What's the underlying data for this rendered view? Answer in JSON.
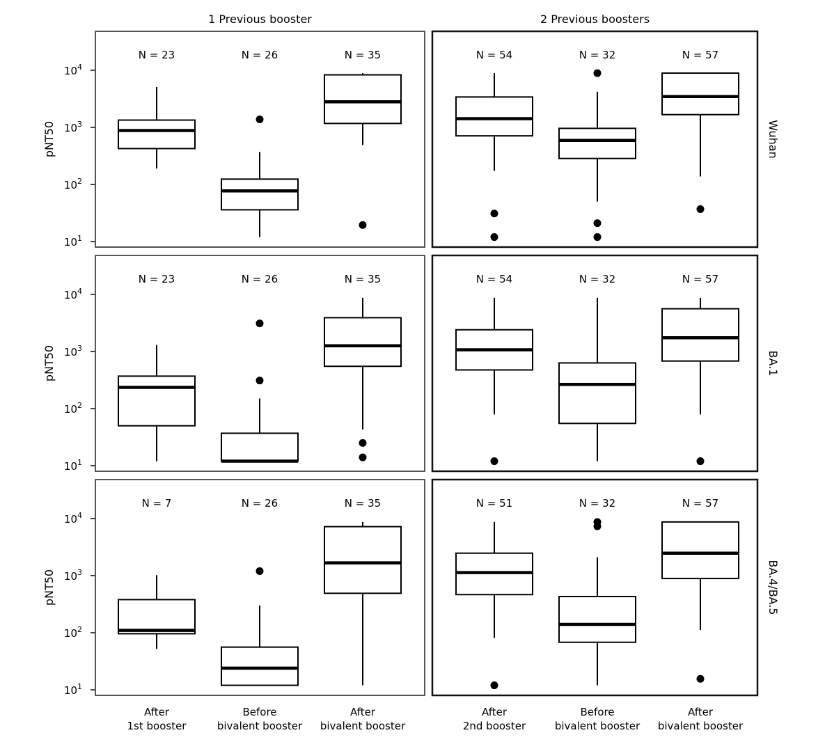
{
  "chart_data": {
    "type": "box",
    "y_scale": "log",
    "ylabel": "pNT50",
    "ylim": [
      8,
      48000
    ],
    "yticks": [
      10,
      100,
      1000,
      10000
    ],
    "ytick_labels": [
      {
        "base": "10",
        "exp": "1"
      },
      {
        "base": "10",
        "exp": "2"
      },
      {
        "base": "10",
        "exp": "3"
      },
      {
        "base": "10",
        "exp": "4"
      }
    ],
    "grid": false,
    "columns": [
      "1 Previous booster",
      "2 Previous boosters"
    ],
    "rows": [
      "Wuhan",
      "BA.1",
      "BA.4/BA.5"
    ],
    "categories": [
      [
        [
          "After",
          "1st booster"
        ],
        [
          "Before",
          "bivalent booster"
        ],
        [
          "After",
          "bivalent booster"
        ]
      ],
      [
        [
          "After",
          "2nd booster"
        ],
        [
          "Before",
          "bivalent booster"
        ],
        [
          "After",
          "bivalent booster"
        ]
      ]
    ],
    "panels": [
      {
        "column": 0,
        "row": 0,
        "boxes": [
          {
            "n_label": "N = 23",
            "whisker_low": 190,
            "q1": 425,
            "median": 880,
            "q3": 1340,
            "whisker_high": 5100,
            "outliers": []
          },
          {
            "n_label": "N = 26",
            "whisker_low": 12,
            "q1": 36,
            "median": 77,
            "q3": 124,
            "whisker_high": 370,
            "outliers": [
              1380
            ]
          },
          {
            "n_label": "N = 35",
            "whisker_low": 490,
            "q1": 1170,
            "median": 2800,
            "q3": 8300,
            "whisker_high": 8900,
            "outliers": [
              19.5
            ]
          }
        ]
      },
      {
        "column": 1,
        "row": 0,
        "boxes": [
          {
            "n_label": "N = 54",
            "whisker_low": 173,
            "q1": 710,
            "median": 1420,
            "q3": 3400,
            "whisker_high": 8900,
            "outliers": [
              31,
              12
            ]
          },
          {
            "n_label": "N = 32",
            "whisker_low": 50,
            "q1": 285,
            "median": 590,
            "q3": 960,
            "whisker_high": 4200,
            "outliers": [
              8900,
              21,
              12
            ]
          },
          {
            "n_label": "N = 57",
            "whisker_low": 138,
            "q1": 1670,
            "median": 3460,
            "q3": 8900,
            "whisker_high": 8900,
            "outliers": [
              37
            ]
          }
        ]
      },
      {
        "column": 0,
        "row": 1,
        "boxes": [
          {
            "n_label": "N = 23",
            "whisker_low": 12,
            "q1": 50,
            "median": 235,
            "q3": 370,
            "whisker_high": 1300,
            "outliers": []
          },
          {
            "n_label": "N = 26",
            "whisker_low": 12,
            "q1": 12,
            "median": 12,
            "q3": 37,
            "whisker_high": 150,
            "outliers": [
              3100,
              310
            ]
          },
          {
            "n_label": "N = 35",
            "whisker_low": 43,
            "q1": 550,
            "median": 1260,
            "q3": 3900,
            "whisker_high": 8700,
            "outliers": [
              25,
              14
            ]
          }
        ]
      },
      {
        "column": 1,
        "row": 1,
        "boxes": [
          {
            "n_label": "N = 54",
            "whisker_low": 79,
            "q1": 475,
            "median": 1070,
            "q3": 2400,
            "whisker_high": 8700,
            "outliers": [
              12
            ]
          },
          {
            "n_label": "N = 32",
            "whisker_low": 12,
            "q1": 55,
            "median": 265,
            "q3": 630,
            "whisker_high": 8700,
            "outliers": []
          },
          {
            "n_label": "N = 57",
            "whisker_low": 79,
            "q1": 680,
            "median": 1740,
            "q3": 5600,
            "whisker_high": 8700,
            "outliers": [
              12
            ]
          }
        ]
      },
      {
        "column": 0,
        "row": 2,
        "boxes": [
          {
            "n_label": "N = 7",
            "whisker_low": 52,
            "q1": 96,
            "median": 110,
            "q3": 380,
            "whisker_high": 1020,
            "outliers": []
          },
          {
            "n_label": "N = 26",
            "whisker_low": 12,
            "q1": 12,
            "median": 24,
            "q3": 56,
            "whisker_high": 300,
            "outliers": [
              1200
            ]
          },
          {
            "n_label": "N = 35",
            "whisker_low": 12,
            "q1": 490,
            "median": 1670,
            "q3": 7200,
            "whisker_high": 8700,
            "outliers": []
          }
        ]
      },
      {
        "column": 1,
        "row": 2,
        "boxes": [
          {
            "n_label": "N = 51",
            "whisker_low": 81,
            "q1": 465,
            "median": 1130,
            "q3": 2470,
            "whisker_high": 8700,
            "outliers": [
              12
            ]
          },
          {
            "n_label": "N = 32",
            "whisker_low": 12,
            "q1": 68,
            "median": 140,
            "q3": 430,
            "whisker_high": 2100,
            "outliers": [
              8700,
              7300
            ]
          },
          {
            "n_label": "N = 57",
            "whisker_low": 112,
            "q1": 890,
            "median": 2470,
            "q3": 8700,
            "whisker_high": 8700,
            "outliers": [
              15.6
            ]
          }
        ]
      }
    ]
  }
}
